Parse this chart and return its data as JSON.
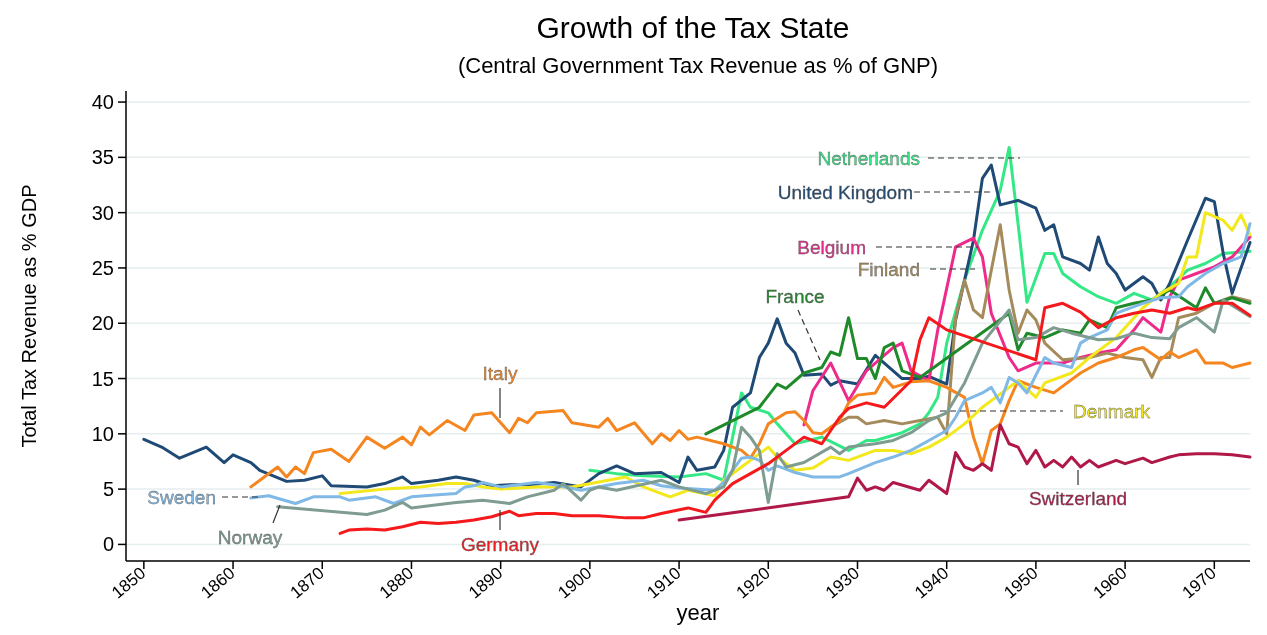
{
  "chart_data": {
    "type": "line",
    "title": "Growth of the Tax State",
    "subtitle": "(Central Government Tax Revenue as % of GNP)",
    "xlabel": "year",
    "ylabel": "Total Tax Revenue as % GDP",
    "xlim": [
      1848,
      1974
    ],
    "xticks": [
      1850,
      1860,
      1870,
      1880,
      1890,
      1900,
      1910,
      1920,
      1930,
      1940,
      1950,
      1960,
      1970
    ],
    "ylim": [
      -1.5,
      41
    ],
    "yticks": [
      0,
      5,
      10,
      15,
      20,
      25,
      30,
      35,
      40
    ],
    "grid": "y",
    "line_style": "solid",
    "series": [
      {
        "name": "Netherlands",
        "color": "#33e885",
        "x": [
          1900,
          1903,
          1906,
          1910,
          1913,
          1915,
          1916,
          1917,
          1918,
          1920,
          1921,
          1923,
          1926,
          1929,
          1931,
          1932,
          1935,
          1937,
          1938,
          1939,
          1940,
          1942,
          1944,
          1946,
          1947,
          1948,
          1949,
          1951,
          1952,
          1953,
          1955,
          1957,
          1959,
          1961,
          1963,
          1965,
          1967,
          1969,
          1971,
          1974
        ],
        "values": [
          6.7,
          6.4,
          6.2,
          6.1,
          6.4,
          5.8,
          9.7,
          13.7,
          12.4,
          11.9,
          10.9,
          9.1,
          9.7,
          8.5,
          9.4,
          9.4,
          10.1,
          10.9,
          11.9,
          13.3,
          18.2,
          23.9,
          28.4,
          32.0,
          35.9,
          29.0,
          21.9,
          26.3,
          26.3,
          24.5,
          23.3,
          22.4,
          21.8,
          22.7,
          22.1,
          23.3,
          24.8,
          25.4,
          26.3,
          26.5
        ]
      },
      {
        "name": "United Kingdom",
        "color": "#1f4a75",
        "x": [
          1850,
          1852,
          1854,
          1857,
          1859,
          1860,
          1862,
          1863,
          1866,
          1868,
          1870,
          1871,
          1875,
          1877,
          1879,
          1880,
          1883,
          1885,
          1887,
          1889,
          1891,
          1893,
          1896,
          1899,
          1901,
          1903,
          1905,
          1908,
          1910,
          1911,
          1912,
          1914,
          1915,
          1916,
          1918,
          1919,
          1920,
          1921,
          1922,
          1923,
          1924,
          1926,
          1927,
          1928,
          1930,
          1932,
          1933,
          1935,
          1937,
          1938,
          1940,
          1941,
          1943,
          1944,
          1945,
          1946,
          1948,
          1950,
          1951,
          1952,
          1953,
          1955,
          1956,
          1957,
          1958,
          1959,
          1960,
          1962,
          1963,
          1964,
          1965,
          1967,
          1969,
          1970,
          1971,
          1972,
          1974
        ],
        "values": [
          9.5,
          8.8,
          7.8,
          8.8,
          7.4,
          8.1,
          7.4,
          6.7,
          5.7,
          5.8,
          6.2,
          5.3,
          5.2,
          5.5,
          6.1,
          5.5,
          5.8,
          6.1,
          5.8,
          5.3,
          5.4,
          5.4,
          5.6,
          5.2,
          6.4,
          7.1,
          6.4,
          6.5,
          5.6,
          7.9,
          6.7,
          7.0,
          8.5,
          12.4,
          13.7,
          16.9,
          18.2,
          20.4,
          18.2,
          17.3,
          15.3,
          15.4,
          14.4,
          14.8,
          14.5,
          17.1,
          16.4,
          15.0,
          15.0,
          15.2,
          14.5,
          20.3,
          27.5,
          33.1,
          34.3,
          30.7,
          31.1,
          30.4,
          28.4,
          28.9,
          26.0,
          25.4,
          24.8,
          27.8,
          25.4,
          24.5,
          23.0,
          24.2,
          23.6,
          22.1,
          23.6,
          27.5,
          31.3,
          31.0,
          26.3,
          22.7,
          27.3
        ]
      },
      {
        "name": "Belgium",
        "color": "#ee2a8a",
        "x": [
          1924,
          1925,
          1927,
          1929,
          1931,
          1934,
          1935,
          1936,
          1938,
          1939,
          1941,
          1943,
          1944,
          1945,
          1947,
          1948,
          1950,
          1953,
          1955,
          1957,
          1959,
          1961,
          1962,
          1964,
          1965,
          1966,
          1968,
          1970,
          1972,
          1974
        ],
        "values": [
          10.8,
          13.9,
          16.4,
          13.0,
          15.7,
          17.8,
          18.2,
          15.7,
          14.8,
          19.4,
          26.9,
          27.7,
          26.0,
          20.9,
          16.9,
          15.7,
          16.4,
          16.4,
          16.9,
          17.3,
          17.6,
          19.4,
          20.5,
          19.2,
          22.4,
          23.9,
          24.5,
          25.1,
          26.0,
          27.8
        ]
      },
      {
        "name": "Finland",
        "color": "#a58b5c",
        "x": [
          1927,
          1929,
          1930,
          1931,
          1933,
          1935,
          1937,
          1939,
          1940,
          1941,
          1942,
          1943,
          1944,
          1945,
          1946,
          1947,
          1948,
          1949,
          1950,
          1951,
          1953,
          1956,
          1958,
          1960,
          1962,
          1963,
          1964,
          1965,
          1966,
          1968,
          1970,
          1972,
          1974
        ],
        "values": [
          10.6,
          11.5,
          11.5,
          10.9,
          11.2,
          10.9,
          11.2,
          11.5,
          10.0,
          20.5,
          23.9,
          21.2,
          20.5,
          24.8,
          28.9,
          23.0,
          19.1,
          21.2,
          20.3,
          18.2,
          16.7,
          16.9,
          17.3,
          16.9,
          16.7,
          15.1,
          16.9,
          16.9,
          20.5,
          20.9,
          21.8,
          22.4,
          22.0
        ]
      },
      {
        "name": "France",
        "color": "#1f8a2a",
        "x": [
          1913,
          1919,
          1921,
          1922,
          1924,
          1926,
          1927,
          1928,
          1929,
          1930,
          1931,
          1932,
          1933,
          1934,
          1935,
          1937,
          1947,
          1948,
          1949,
          1951,
          1953,
          1955,
          1956,
          1958,
          1959,
          1961,
          1963,
          1965,
          1968,
          1969,
          1970,
          1972,
          1974
        ],
        "values": [
          10.0,
          12.4,
          14.5,
          14.1,
          15.5,
          16.0,
          17.4,
          17.1,
          20.5,
          16.8,
          16.8,
          15.0,
          17.8,
          18.2,
          15.7,
          15.1,
          20.9,
          17.6,
          19.1,
          18.7,
          19.4,
          19.1,
          20.3,
          19.6,
          21.4,
          21.8,
          22.1,
          23.0,
          21.4,
          23.2,
          21.8,
          22.3,
          21.8
        ]
      },
      {
        "name": "Italy",
        "color": "#f5861f",
        "x": [
          1862,
          1865,
          1866,
          1867,
          1868,
          1869,
          1871,
          1873,
          1875,
          1877,
          1879,
          1880,
          1881,
          1882,
          1884,
          1886,
          1887,
          1889,
          1891,
          1892,
          1893,
          1894,
          1897,
          1898,
          1901,
          1902,
          1903,
          1905,
          1907,
          1908,
          1909,
          1910,
          1911,
          1912,
          1915,
          1917,
          1918,
          1919,
          1920,
          1922,
          1923,
          1924,
          1925,
          1926,
          1928,
          1929,
          1930,
          1932,
          1933,
          1934,
          1936,
          1938,
          1940,
          1942,
          1943,
          1944,
          1945,
          1946,
          1947,
          1948,
          1950,
          1952,
          1955,
          1957,
          1959,
          1961,
          1962,
          1964,
          1965,
          1966,
          1968,
          1969,
          1971,
          1972,
          1974
        ],
        "values": [
          5.2,
          7.0,
          6.1,
          7.0,
          6.4,
          8.3,
          8.6,
          7.5,
          9.7,
          8.7,
          9.7,
          9.0,
          10.6,
          9.9,
          11.2,
          10.3,
          11.7,
          11.9,
          10.1,
          11.4,
          11.0,
          11.9,
          12.1,
          11.0,
          10.6,
          11.4,
          10.3,
          11.0,
          9.1,
          10.0,
          9.4,
          10.3,
          9.5,
          9.7,
          9.1,
          8.5,
          7.8,
          9.1,
          10.9,
          11.9,
          12.0,
          11.2,
          10.1,
          10.0,
          11.2,
          12.8,
          13.5,
          13.7,
          15.1,
          14.2,
          14.7,
          14.8,
          14.2,
          13.3,
          9.7,
          7.3,
          10.3,
          10.9,
          13.0,
          14.8,
          14.2,
          13.7,
          15.5,
          16.4,
          16.9,
          17.6,
          17.8,
          16.7,
          17.4,
          16.9,
          17.6,
          16.4,
          16.4,
          16.0,
          16.4
        ]
      },
      {
        "name": "Denmark",
        "color": "#f2e81c",
        "x": [
          1872,
          1877,
          1881,
          1884,
          1886,
          1888,
          1890,
          1894,
          1898,
          1904,
          1906,
          1909,
          1911,
          1914,
          1915,
          1917,
          1918,
          1920,
          1921,
          1923,
          1925,
          1927,
          1929,
          1932,
          1934,
          1936,
          1938,
          1940,
          1942,
          1944,
          1947,
          1948,
          1950,
          1951,
          1954,
          1956,
          1959,
          1961,
          1962,
          1964,
          1966,
          1967,
          1968,
          1969,
          1971,
          1972,
          1973,
          1974
        ],
        "values": [
          4.6,
          5.0,
          5.2,
          5.5,
          5.5,
          5.2,
          5.0,
          5.2,
          5.2,
          6.1,
          5.2,
          4.3,
          4.9,
          4.4,
          5.8,
          7.0,
          7.6,
          8.8,
          7.9,
          6.7,
          6.9,
          7.9,
          7.6,
          8.5,
          8.5,
          8.2,
          8.8,
          9.7,
          10.9,
          12.4,
          14.2,
          14.8,
          13.3,
          14.6,
          15.5,
          16.9,
          18.7,
          20.5,
          21.4,
          22.7,
          23.6,
          26.0,
          26.0,
          30.0,
          29.3,
          28.4,
          29.8,
          28.0
        ]
      },
      {
        "name": "Sweden",
        "color": "#80b8e6",
        "x": [
          1862,
          1864,
          1867,
          1869,
          1872,
          1873,
          1876,
          1878,
          1880,
          1883,
          1885,
          1886,
          1887,
          1888,
          1890,
          1894,
          1896,
          1899,
          1903,
          1906,
          1908,
          1910,
          1914,
          1915,
          1917,
          1918,
          1919,
          1920,
          1921,
          1923,
          1925,
          1928,
          1929,
          1932,
          1934,
          1936,
          1938,
          1940,
          1941,
          1942,
          1944,
          1945,
          1946,
          1947,
          1948,
          1949,
          1951,
          1952,
          1954,
          1955,
          1956,
          1958,
          1959,
          1960,
          1962,
          1964,
          1966,
          1967,
          1969,
          1971,
          1973,
          1974
        ],
        "values": [
          4.2,
          4.4,
          3.7,
          4.3,
          4.3,
          4.0,
          4.3,
          3.7,
          4.3,
          4.5,
          4.6,
          5.2,
          5.3,
          5.6,
          5.2,
          5.6,
          5.4,
          4.9,
          5.5,
          5.8,
          5.3,
          5.1,
          4.9,
          5.6,
          7.8,
          7.9,
          7.6,
          6.7,
          7.1,
          6.5,
          6.1,
          6.1,
          6.4,
          7.4,
          7.9,
          8.5,
          9.4,
          10.3,
          11.5,
          13.0,
          13.7,
          14.2,
          12.8,
          15.1,
          14.6,
          13.7,
          16.9,
          16.4,
          16.0,
          18.2,
          18.7,
          19.4,
          20.9,
          21.2,
          21.8,
          22.3,
          22.4,
          23.3,
          24.5,
          25.4,
          26.0,
          29.0
        ]
      },
      {
        "name": "Norway",
        "color": "#7f9c90",
        "x": [
          1865,
          1875,
          1877,
          1879,
          1880,
          1882,
          1885,
          1888,
          1891,
          1893,
          1896,
          1897,
          1899,
          1900,
          1901,
          1903,
          1908,
          1910,
          1913,
          1915,
          1916,
          1917,
          1918,
          1919,
          1920,
          1921,
          1922,
          1924,
          1927,
          1928,
          1929,
          1932,
          1934,
          1936,
          1938,
          1940,
          1942,
          1944,
          1947,
          1948,
          1950,
          1952,
          1954,
          1957,
          1959,
          1961,
          1963,
          1965,
          1966,
          1968,
          1970,
          1971,
          1974
        ],
        "values": [
          3.4,
          2.7,
          3.1,
          3.8,
          3.3,
          3.5,
          3.8,
          4.0,
          3.7,
          4.3,
          4.9,
          5.5,
          4.0,
          4.9,
          5.2,
          4.9,
          5.8,
          5.2,
          4.6,
          5.2,
          6.7,
          10.6,
          9.7,
          8.5,
          3.8,
          8.2,
          7.0,
          7.4,
          8.8,
          8.2,
          8.8,
          9.1,
          9.4,
          10.1,
          11.2,
          11.9,
          14.6,
          18.2,
          21.2,
          18.5,
          18.7,
          19.6,
          19.1,
          18.5,
          18.6,
          19.1,
          18.7,
          18.6,
          19.6,
          20.5,
          19.2,
          22.1,
          20.6
        ]
      },
      {
        "name": "Germany",
        "color": "#f5191c",
        "x": [
          1872,
          1873,
          1875,
          1877,
          1879,
          1881,
          1883,
          1885,
          1887,
          1889,
          1891,
          1892,
          1894,
          1896,
          1898,
          1901,
          1904,
          1906,
          1908,
          1911,
          1913,
          1914,
          1916,
          1918,
          1920,
          1922,
          1924,
          1926,
          1928,
          1929,
          1931,
          1933,
          1936,
          1937,
          1938,
          1940,
          1950,
          1951,
          1953,
          1955,
          1957,
          1959,
          1961,
          1963,
          1965,
          1967,
          1968,
          1970,
          1972,
          1974
        ],
        "values": [
          1.0,
          1.3,
          1.4,
          1.3,
          1.6,
          2.0,
          1.9,
          2.0,
          2.2,
          2.5,
          3.0,
          2.6,
          2.8,
          2.8,
          2.6,
          2.6,
          2.4,
          2.4,
          2.8,
          3.3,
          2.9,
          4.0,
          5.5,
          6.4,
          7.3,
          8.5,
          9.7,
          9.1,
          11.5,
          12.3,
          12.8,
          12.4,
          14.8,
          18.5,
          20.5,
          19.4,
          16.7,
          21.4,
          21.8,
          21.0,
          19.6,
          20.5,
          20.9,
          21.2,
          20.9,
          21.4,
          21.2,
          21.8,
          21.8,
          20.7
        ]
      },
      {
        "name": "Switzerland",
        "color": "#b01848",
        "x": [
          1910,
          1929,
          1930,
          1931,
          1932,
          1933,
          1934,
          1937,
          1938,
          1940,
          1941,
          1942,
          1943,
          1944,
          1945,
          1946,
          1947,
          1948,
          1949,
          1950,
          1951,
          1952,
          1953,
          1954,
          1955,
          1956,
          1957,
          1959,
          1960,
          1962,
          1963,
          1965,
          1966,
          1968,
          1970,
          1972,
          1974
        ],
        "values": [
          2.2,
          4.3,
          6.0,
          4.9,
          5.2,
          4.9,
          5.6,
          4.9,
          5.8,
          4.6,
          8.3,
          7.0,
          6.7,
          7.3,
          6.7,
          10.8,
          9.1,
          8.8,
          7.3,
          8.5,
          7.0,
          7.6,
          7.0,
          7.9,
          7.0,
          7.6,
          7.0,
          7.6,
          7.3,
          7.8,
          7.4,
          7.9,
          8.1,
          8.2,
          8.2,
          8.1,
          7.9
        ]
      }
    ]
  }
}
